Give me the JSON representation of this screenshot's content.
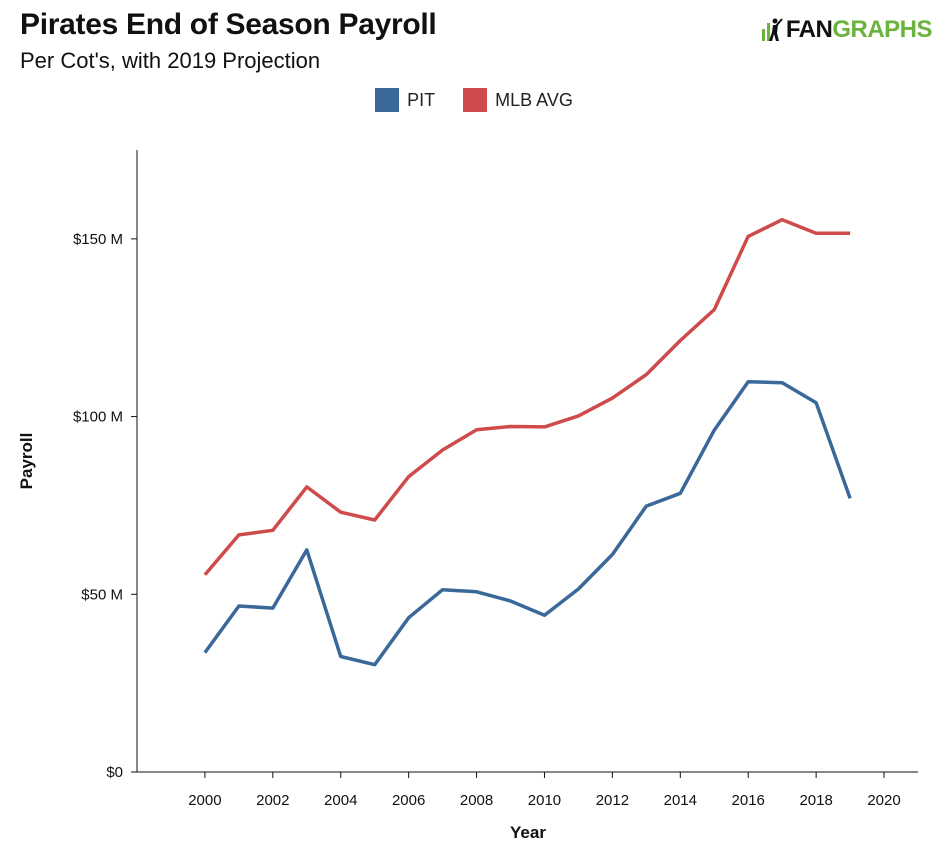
{
  "header": {
    "title": "Pirates End of Season Payroll",
    "subtitle": "Per Cot's, with 2019 Projection",
    "logo_fan": "FAN",
    "logo_graphs": "GRAPHS"
  },
  "colors": {
    "pit": "#3a6898",
    "mlb": "#cf4b4b",
    "logo_green": "#6ab43e"
  },
  "chart_data": {
    "type": "line",
    "title": "Pirates End of Season Payroll",
    "subtitle": "Per Cot's, with 2019 Projection",
    "xlabel": "Year",
    "ylabel": "Payroll",
    "xlim": [
      1998,
      2021
    ],
    "ylim": [
      0,
      175
    ],
    "x_ticks": [
      2000,
      2002,
      2004,
      2006,
      2008,
      2010,
      2012,
      2014,
      2016,
      2018,
      2020
    ],
    "y_ticks": [
      0,
      50,
      100,
      150
    ],
    "y_tick_labels": [
      "$0",
      "$50 M",
      "$100 M",
      "$150 M"
    ],
    "legend_position": "top-center",
    "grid": false,
    "x": [
      2000,
      2001,
      2002,
      2003,
      2004,
      2005,
      2006,
      2007,
      2008,
      2009,
      2010,
      2011,
      2012,
      2013,
      2014,
      2015,
      2016,
      2017,
      2018,
      2019
    ],
    "series": [
      {
        "name": "PIT",
        "color": "#3a6898",
        "values": [
          33.6,
          46.7,
          46.1,
          62.5,
          32.5,
          30.2,
          43.4,
          51.3,
          50.7,
          48.1,
          44.1,
          51.5,
          61.2,
          74.8,
          78.4,
          96.2,
          109.8,
          109.5,
          103.9,
          77.0
        ]
      },
      {
        "name": "MLB AVG",
        "color": "#cf4b4b",
        "values": [
          55.5,
          66.7,
          68.0,
          80.2,
          73.1,
          70.9,
          83.1,
          90.6,
          96.3,
          97.2,
          97.1,
          100.2,
          105.2,
          111.8,
          121.4,
          130.1,
          150.7,
          155.4,
          151.6,
          151.6
        ]
      }
    ]
  }
}
